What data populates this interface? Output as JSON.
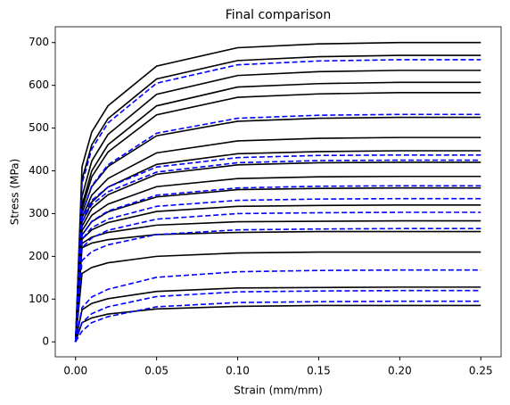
{
  "chart_data": {
    "type": "line",
    "title": "Final comparison",
    "x_label": "Strain (mm/mm)",
    "y_label": "Stress (MPa)",
    "x": [
      0,
      0.004,
      0.01,
      0.02,
      0.05,
      0.1,
      0.15,
      0.2,
      0.25
    ],
    "xlim": [
      -0.0125,
      0.2625
    ],
    "xticks": [
      {
        "value": 0,
        "label": "0.00"
      },
      0.05,
      {
        "value": 0.1,
        "label": "0.10"
      },
      0.15,
      {
        "value": 0.2,
        "label": "0.20"
      },
      0.25
    ],
    "ylim": [
      -35,
      737
    ],
    "yticks": [
      0,
      100,
      200,
      300,
      400,
      500,
      600,
      700
    ],
    "grid": false,
    "series": [
      {
        "color": "#000000",
        "linestyle": "solid",
        "values": [
          0,
          410,
          491,
          552,
          645,
          688,
          697,
          700,
          700
        ]
      },
      {
        "color": "#000000",
        "linestyle": "solid",
        "values": [
          0,
          380,
          461,
          522,
          615,
          658,
          667,
          670,
          670
        ]
      },
      {
        "color": "#000000",
        "linestyle": "solid",
        "values": [
          0,
          340,
          423,
          485,
          579,
          623,
          632,
          635,
          635
        ]
      },
      {
        "color": "#000000",
        "linestyle": "solid",
        "values": [
          0,
          320,
          400,
          461,
          552,
          596,
          604,
          607,
          607
        ]
      },
      {
        "color": "#000000",
        "linestyle": "solid",
        "values": [
          0,
          310,
          386,
          444,
          531,
          572,
          580,
          583,
          583
        ]
      },
      {
        "color": "#000000",
        "linestyle": "solid",
        "values": [
          0,
          300,
          363,
          410,
          482,
          516,
          523,
          525,
          525
        ]
      },
      {
        "color": "#000000",
        "linestyle": "solid",
        "values": [
          0,
          290,
          343,
          382,
          442,
          470,
          476,
          478,
          478
        ]
      },
      {
        "color": "#000000",
        "linestyle": "solid",
        "values": [
          0,
          280,
          327,
          362,
          415,
          440,
          445,
          447,
          447
        ]
      },
      {
        "color": "#000000",
        "linestyle": "solid",
        "values": [
          0,
          270,
          312,
          344,
          392,
          414,
          419,
          420,
          420
        ]
      },
      {
        "color": "#000000",
        "linestyle": "solid",
        "values": [
          0,
          260,
          296,
          322,
          363,
          382,
          386,
          387,
          387
        ]
      },
      {
        "color": "#000000",
        "linestyle": "solid",
        "values": [
          0,
          250,
          281,
          304,
          339,
          356,
          359,
          360,
          360
        ]
      },
      {
        "color": "#000000",
        "linestyle": "solid",
        "values": [
          0,
          240,
          262,
          279,
          305,
          317,
          319,
          320,
          320
        ]
      },
      {
        "color": "#000000",
        "linestyle": "solid",
        "values": [
          0,
          230,
          245,
          256,
          273,
          281,
          282,
          283,
          283
        ]
      },
      {
        "color": "#000000",
        "linestyle": "solid",
        "values": [
          0,
          220,
          231,
          239,
          251,
          256,
          258,
          258,
          258
        ]
      },
      {
        "color": "#000000",
        "linestyle": "solid",
        "values": [
          0,
          160,
          174,
          185,
          200,
          208,
          210,
          210,
          210
        ]
      },
      {
        "color": "#000000",
        "linestyle": "solid",
        "values": [
          0,
          75,
          90,
          101,
          118,
          126,
          127,
          128,
          128
        ]
      },
      {
        "color": "#000000",
        "linestyle": "solid",
        "values": [
          0,
          45,
          56,
          65,
          77,
          83,
          85,
          85,
          85
        ]
      },
      {
        "color": "#0000ff",
        "linestyle": "dashed",
        "values": [
          0,
          370,
          451,
          512,
          605,
          648,
          657,
          660,
          660
        ]
      },
      {
        "color": "#0000ff",
        "linestyle": "dashed",
        "values": [
          0,
          300,
          365,
          414,
          488,
          523,
          530,
          532,
          532
        ]
      },
      {
        "color": "#0000ff",
        "linestyle": "dashed",
        "values": [
          0,
          290,
          331,
          362,
          409,
          431,
          436,
          437,
          437
        ]
      },
      {
        "color": "#0000ff",
        "linestyle": "dashed",
        "values": [
          0,
          280,
          321,
          351,
          397,
          419,
          424,
          425,
          425
        ]
      },
      {
        "color": "#0000ff",
        "linestyle": "dashed",
        "values": [
          0,
          250,
          282,
          306,
          343,
          360,
          364,
          365,
          365
        ]
      },
      {
        "color": "#0000ff",
        "linestyle": "dashed",
        "values": [
          0,
          240,
          267,
          287,
          317,
          331,
          334,
          335,
          335
        ]
      },
      {
        "color": "#0000ff",
        "linestyle": "dashed",
        "values": [
          0,
          220,
          243,
          261,
          287,
          300,
          302,
          303,
          303
        ]
      },
      {
        "color": "#0000ff",
        "linestyle": "dashed",
        "values": [
          0,
          190,
          211,
          227,
          251,
          262,
          264,
          265,
          265
        ]
      },
      {
        "color": "#0000ff",
        "linestyle": "dashed",
        "values": [
          0,
          80,
          105,
          123,
          151,
          164,
          167,
          168,
          168
        ]
      },
      {
        "color": "#0000ff",
        "linestyle": "dashed",
        "values": [
          0,
          45,
          66,
          82,
          106,
          117,
          119,
          120,
          120
        ]
      },
      {
        "color": "#0000ff",
        "linestyle": "dashed",
        "values": [
          0,
          25,
          45,
          59,
          82,
          92,
          94,
          95,
          95
        ]
      }
    ]
  }
}
